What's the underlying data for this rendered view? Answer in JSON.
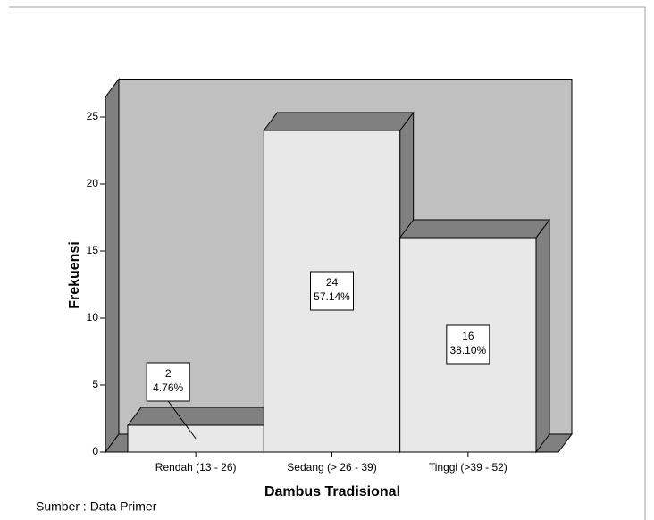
{
  "chart_data": {
    "type": "bar3d",
    "categories": [
      "Rendah (13 - 26)",
      "Sedang (> 26 - 39)",
      "Tinggi (>39 - 52)"
    ],
    "values": [
      2,
      24,
      16
    ],
    "percent_labels": [
      "4.76%",
      "57.14%",
      "38.10%"
    ],
    "ylim": [
      0,
      26.5
    ],
    "yticks": [
      0,
      5,
      10,
      15,
      20,
      25
    ],
    "y_label": "Frekuensi",
    "x_label": "Dambus Tradisional",
    "footnote": "Sumber : Data Primer",
    "color": "#e8e8e8",
    "shade_color": "#808080",
    "wall_color": "#c0c0c0"
  }
}
